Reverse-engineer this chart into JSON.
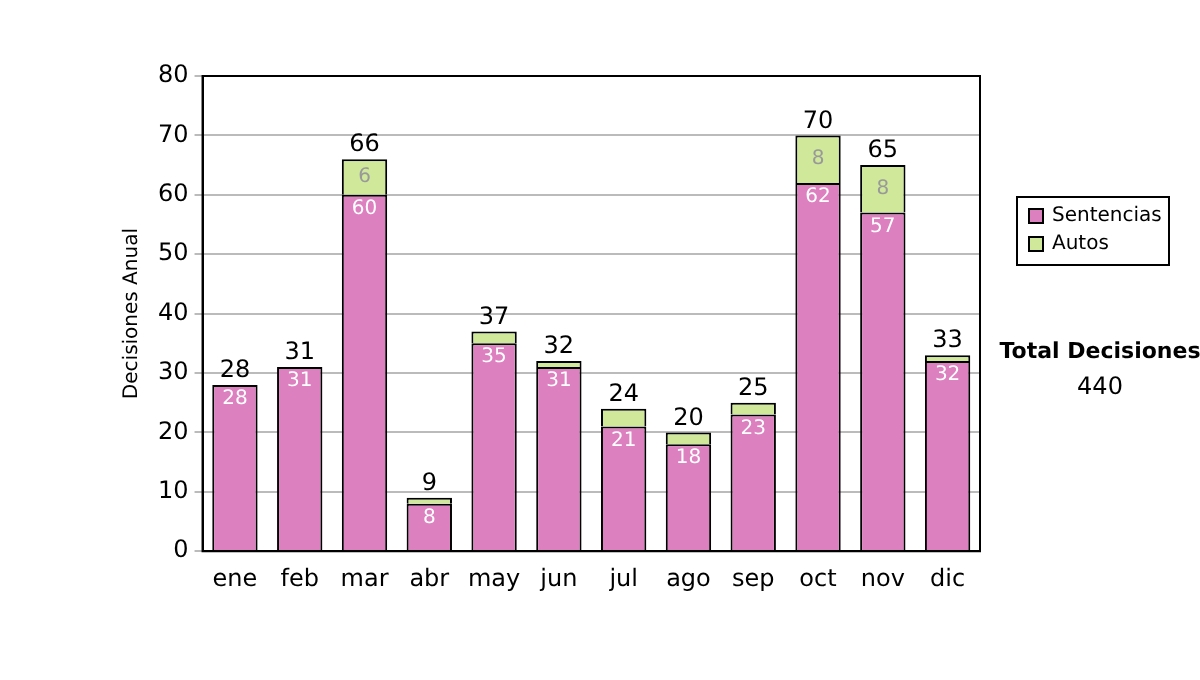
{
  "chart_data": {
    "type": "bar",
    "stacked": true,
    "ylabel": "Decisiones Anual",
    "categories": [
      "ene",
      "feb",
      "mar",
      "abr",
      "may",
      "jun",
      "jul",
      "ago",
      "sep",
      "oct",
      "nov",
      "dic"
    ],
    "series": [
      {
        "name": "Sentencias",
        "color": "#dd80c0",
        "values": [
          28,
          31,
          60,
          8,
          35,
          31,
          21,
          18,
          23,
          62,
          57,
          32
        ],
        "value_labels": [
          "28",
          "31",
          "60",
          "8",
          "35",
          "31",
          "21",
          "18",
          "23",
          "62",
          "57",
          "32"
        ]
      },
      {
        "name": "Autos",
        "color": "#cfe89a",
        "values": [
          0,
          0,
          6,
          1,
          2,
          1,
          3,
          2,
          2,
          8,
          8,
          1
        ],
        "value_labels": [
          null,
          null,
          "6",
          null,
          null,
          null,
          null,
          null,
          null,
          "8",
          "8",
          null
        ]
      }
    ],
    "totals": [
      "28",
      "31",
      "66",
      "9",
      "37",
      "32",
      "24",
      "20",
      "25",
      "70",
      "65",
      "33"
    ],
    "ylim": [
      0,
      80
    ],
    "yticks": [
      0,
      10,
      20,
      30,
      40,
      50,
      60,
      70,
      80
    ],
    "grid": "y",
    "legend": "right",
    "annotations": [
      "Total Decisiones",
      "440"
    ]
  }
}
